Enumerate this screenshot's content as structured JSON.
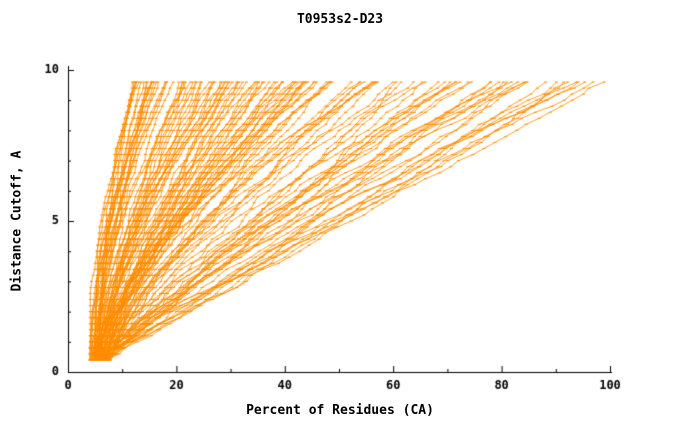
{
  "chart_data": {
    "type": "line",
    "title": "T0953s2-D23",
    "xlabel": "Percent of Residues (CA)",
    "ylabel": "Distance Cutoff, A",
    "xlim": [
      0,
      100
    ],
    "ylim": [
      0,
      10
    ],
    "xticks": [
      0,
      20,
      40,
      60,
      80,
      100
    ],
    "yticks": [
      0,
      5,
      10
    ],
    "x_minor_step": 10,
    "y_minor_step": 1,
    "grid": false,
    "legend": "none",
    "line_color": "#ff8c00",
    "axis_color": "#000000",
    "y_start": 0.4,
    "y_end": 9.6,
    "y_step": 0.2,
    "series": [
      {
        "x0": 4.0,
        "x1": 12.5,
        "b": 1.7
      },
      {
        "x0": 4.5,
        "x1": 13.0,
        "b": 1.6
      },
      {
        "x0": 5.0,
        "x1": 13.5,
        "b": 1.8
      },
      {
        "x0": 4.2,
        "x1": 14.0,
        "b": 1.5
      },
      {
        "x0": 5.5,
        "x1": 14.5,
        "b": 1.7
      },
      {
        "x0": 4.8,
        "x1": 15.0,
        "b": 1.6
      },
      {
        "x0": 5.2,
        "x1": 15.5,
        "b": 1.5
      },
      {
        "x0": 4.4,
        "x1": 16.0,
        "b": 1.8
      },
      {
        "x0": 5.8,
        "x1": 17.0,
        "b": 1.6
      },
      {
        "x0": 5.0,
        "x1": 18.0,
        "b": 1.5
      },
      {
        "x0": 4.6,
        "x1": 20.0,
        "b": 1.4
      },
      {
        "x0": 5.4,
        "x1": 21.0,
        "b": 1.3
      },
      {
        "x0": 6.0,
        "x1": 22.0,
        "b": 1.5
      },
      {
        "x0": 4.8,
        "x1": 23.0,
        "b": 1.2
      },
      {
        "x0": 6.5,
        "x1": 24.0,
        "b": 1.4
      },
      {
        "x0": 5.0,
        "x1": 25.0,
        "b": 1.3
      },
      {
        "x0": 5.6,
        "x1": 26.0,
        "b": 1.5
      },
      {
        "x0": 6.8,
        "x1": 27.0,
        "b": 1.2
      },
      {
        "x0": 4.5,
        "x1": 28.0,
        "b": 1.4
      },
      {
        "x0": 7.0,
        "x1": 29.0,
        "b": 1.3
      },
      {
        "x0": 5.2,
        "x1": 30.0,
        "b": 1.5
      },
      {
        "x0": 6.2,
        "x1": 31.0,
        "b": 1.2
      },
      {
        "x0": 5.8,
        "x1": 32.0,
        "b": 1.4
      },
      {
        "x0": 4.9,
        "x1": 33.0,
        "b": 1.3
      },
      {
        "x0": 6.6,
        "x1": 34.0,
        "b": 1.5
      },
      {
        "x0": 5.3,
        "x1": 35.0,
        "b": 1.2
      },
      {
        "x0": 7.2,
        "x1": 36.0,
        "b": 1.4
      },
      {
        "x0": 5.7,
        "x1": 37.0,
        "b": 1.3
      },
      {
        "x0": 6.1,
        "x1": 38.0,
        "b": 1.5
      },
      {
        "x0": 5.0,
        "x1": 40.0,
        "b": 1.2
      },
      {
        "x0": 6.9,
        "x1": 41.0,
        "b": 1.4
      },
      {
        "x0": 5.5,
        "x1": 42.0,
        "b": 1.3
      },
      {
        "x0": 7.4,
        "x1": 43.0,
        "b": 1.5
      },
      {
        "x0": 6.0,
        "x1": 44.0,
        "b": 1.2
      },
      {
        "x0": 5.1,
        "x1": 45.0,
        "b": 1.4
      },
      {
        "x0": 6.4,
        "x1": 46.0,
        "b": 1.3
      },
      {
        "x0": 5.9,
        "x1": 47.0,
        "b": 1.5
      },
      {
        "x0": 7.1,
        "x1": 48.0,
        "b": 1.2
      },
      {
        "x0": 5.4,
        "x1": 50.0,
        "b": 1.4
      },
      {
        "x0": 6.7,
        "x1": 52.0,
        "b": 1.3
      },
      {
        "x0": 5.6,
        "x1": 54.0,
        "b": 1.5
      },
      {
        "x0": 6.3,
        "x1": 56.0,
        "b": 1.2
      },
      {
        "x0": 7.5,
        "x1": 58.0,
        "b": 1.4
      },
      {
        "x0": 5.8,
        "x1": 60.0,
        "b": 1.3
      },
      {
        "x0": 6.0,
        "x1": 62.0,
        "b": 1.1
      },
      {
        "x0": 6.5,
        "x1": 64.0,
        "b": 1.2
      },
      {
        "x0": 5.5,
        "x1": 66.0,
        "b": 1.0
      },
      {
        "x0": 7.0,
        "x1": 68.0,
        "b": 1.15
      },
      {
        "x0": 6.2,
        "x1": 70.0,
        "b": 1.05
      },
      {
        "x0": 5.8,
        "x1": 72.0,
        "b": 1.2
      },
      {
        "x0": 6.8,
        "x1": 75.0,
        "b": 1.1
      },
      {
        "x0": 6.0,
        "x1": 78.0,
        "b": 1.0
      },
      {
        "x0": 7.2,
        "x1": 80.0,
        "b": 1.15
      },
      {
        "x0": 5.6,
        "x1": 82.0,
        "b": 1.05
      },
      {
        "x0": 6.4,
        "x1": 85.0,
        "b": 1.2
      },
      {
        "x0": 7.0,
        "x1": 88.0,
        "b": 1.1
      },
      {
        "x0": 6.1,
        "x1": 90.0,
        "b": 1.0
      },
      {
        "x0": 6.6,
        "x1": 93.0,
        "b": 1.15
      },
      {
        "x0": 5.9,
        "x1": 96.0,
        "b": 1.05
      },
      {
        "x0": 7.3,
        "x1": 98.0,
        "b": 1.1
      }
    ]
  },
  "layout_meta": {
    "note": "GDT-style plot, many orange model curves, black axes on white background"
  }
}
